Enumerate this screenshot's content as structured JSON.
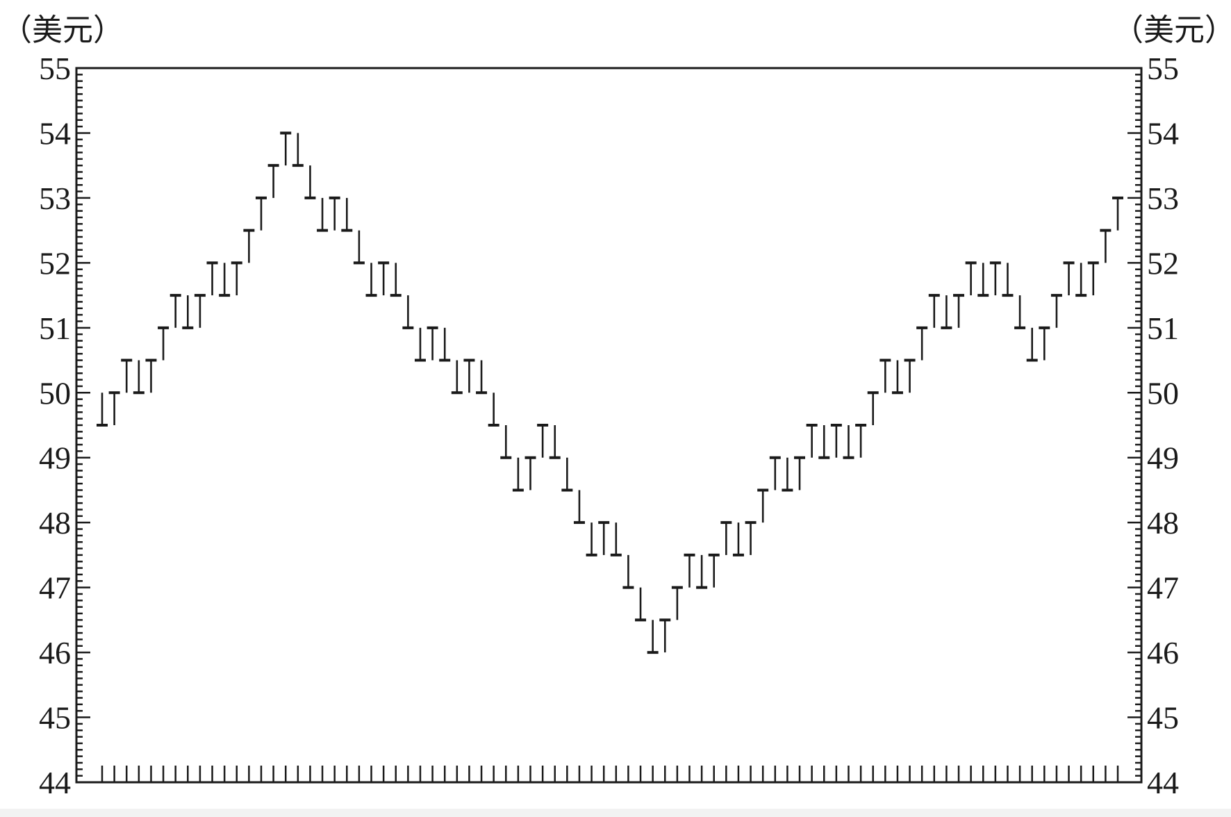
{
  "chart_data": {
    "type": "line",
    "style": "point-and-figure step marks (T up / ⊥ down)",
    "title": "",
    "left_unit_label": "（美元）",
    "right_unit_label": "（美元）",
    "ylim": [
      44,
      55
    ],
    "y_ticks": [
      "44",
      "45",
      "46",
      "47",
      "48",
      "49",
      "50",
      "51",
      "52",
      "53",
      "54",
      "55"
    ],
    "grid": false,
    "series": [
      {
        "values": [
          49.5,
          50,
          50.5,
          50,
          50.5,
          51,
          51.5,
          51,
          51.5,
          52,
          51.5,
          52,
          52.5,
          53,
          53.5,
          54,
          53.5,
          53,
          52.5,
          53,
          52.5,
          52,
          51.5,
          52,
          51.5,
          51,
          50.5,
          51,
          50.5,
          50,
          50.5,
          50,
          49.5,
          49,
          48.5,
          49,
          49.5,
          49,
          48.5,
          48,
          47.5,
          48,
          47.5,
          47,
          46.5,
          46,
          46.5,
          47,
          47.5,
          47,
          47.5,
          48,
          47.5,
          48,
          48.5,
          49,
          48.5,
          49,
          49.5,
          49,
          49.5,
          49,
          49.5,
          50,
          50.5,
          50,
          50.5,
          51,
          51.5,
          51,
          51.5,
          52,
          51.5,
          52,
          51.5,
          51,
          50.5,
          51,
          51.5,
          52,
          51.5,
          52,
          52.5,
          53
        ]
      }
    ]
  }
}
